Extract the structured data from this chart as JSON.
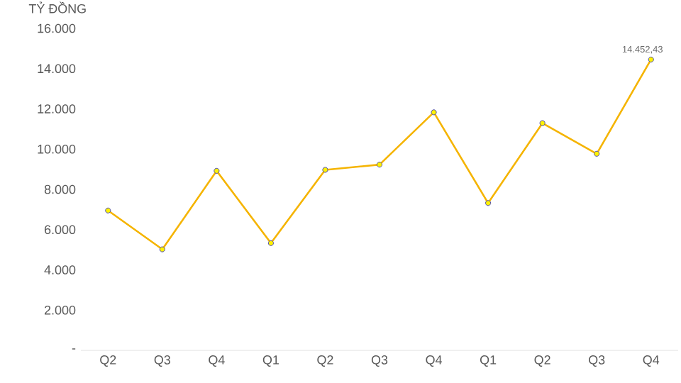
{
  "chart_data": {
    "type": "line",
    "ylabel": "TỶ ĐỒNG",
    "categories": [
      "Q2",
      "Q3",
      "Q4",
      "Q1",
      "Q2",
      "Q3",
      "Q4",
      "Q1",
      "Q2",
      "Q3",
      "Q4"
    ],
    "values": [
      6950,
      5020,
      8920,
      5330,
      8970,
      9230,
      11830,
      7320,
      11290,
      9770,
      14452.43
    ],
    "value_labels": [
      null,
      null,
      null,
      null,
      null,
      null,
      null,
      null,
      null,
      null,
      "14.452,43"
    ],
    "color": "#f5b400",
    "marker": "circle",
    "line_style": "solid",
    "ylim": [
      0,
      16000
    ],
    "yticks": [
      {
        "value": 0,
        "label": "-"
      },
      {
        "value": 2000,
        "label": "2.000"
      },
      {
        "value": 4000,
        "label": "4.000"
      },
      {
        "value": 6000,
        "label": "6.000"
      },
      {
        "value": 8000,
        "label": "8.000"
      },
      {
        "value": 10000,
        "label": "10.000"
      },
      {
        "value": 12000,
        "label": "12.000"
      },
      {
        "value": 14000,
        "label": "14.000"
      },
      {
        "value": 16000,
        "label": "16.000"
      }
    ]
  }
}
